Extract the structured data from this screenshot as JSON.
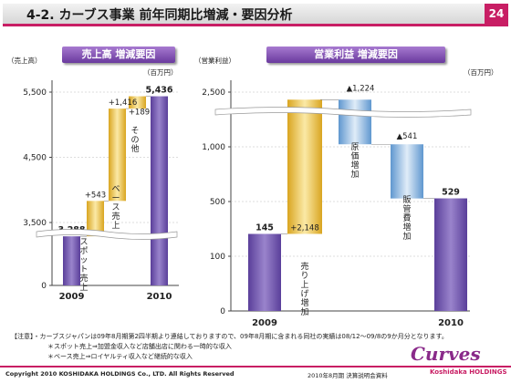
{
  "header": {
    "title": "4-2. カーブス事業 前年同期比増減・要因分析",
    "page": "24"
  },
  "left_panel": {
    "title": "売上高 増減要因",
    "axis_unit": "（売上高）",
    "money_unit": "（百万円）"
  },
  "right_panel": {
    "title": "営業利益 増減要因",
    "axis_unit": "（営業利益）",
    "money_unit": "（百万円）"
  },
  "chart_data": [
    {
      "type": "bar",
      "subtype": "waterfall",
      "categories": [
        "2009",
        "スポット売上",
        "ベース売上",
        "その他",
        "2010"
      ],
      "x_tick_labels": [
        "2009",
        "2010"
      ],
      "values": [
        3288,
        543,
        1416,
        189,
        5436
      ],
      "value_labels": [
        "3,288",
        "+543",
        "+1,416",
        "+189",
        "5,436"
      ],
      "y_ticks": [
        "0",
        "3,500",
        "4,500",
        "5,500"
      ],
      "axis_break": true,
      "colors": {
        "total": "#6b4aa8",
        "increase": "#e0b030"
      }
    },
    {
      "type": "bar",
      "subtype": "waterfall",
      "categories": [
        "2009",
        "売り上げ増加",
        "原価増加",
        "販管費増加",
        "2010"
      ],
      "x_tick_labels": [
        "2009",
        "2010"
      ],
      "values": [
        145,
        2148,
        -1224,
        -541,
        529
      ],
      "value_labels": [
        "145",
        "+2,148",
        "▲1,224",
        "▲541",
        "529"
      ],
      "y_ticks": [
        "0",
        "100",
        "500",
        "1,000",
        "2,500"
      ],
      "axis_break": true,
      "colors": {
        "total": "#6b4aa8",
        "increase": "#e0b030",
        "decrease": "#5b9bd5"
      }
    }
  ],
  "notes": {
    "line1": "【注意】・カーブスジャパンは09年8月期第2四半期より連結しておりますので、09年8月期に含まれる同社の実績は08/12～09/8の9か月分となります。",
    "line2": "＊スポット売上⇒加盟金収入など店舗出店に関わる一時的な収入",
    "line3": "＊ベース売上⇒ロイヤルティ収入など継続的な収入"
  },
  "footer": {
    "copyright": "Copyright 2010 KOSHIDAKA HOLDINGS Co., LTD. All Rights Reserved",
    "event": "2010年8月期 決算説明会資料",
    "logo_text": "Curves",
    "logo_sub": "Koshidaka HOLDINGS"
  }
}
